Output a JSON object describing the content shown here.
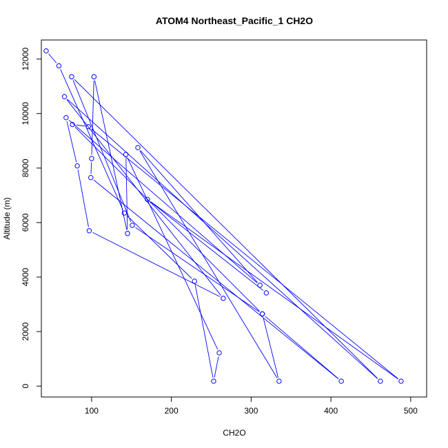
{
  "chart_data": {
    "type": "line",
    "mode": "both",
    "title": "ATOM4 Northeast_Pacific_1 CH2O",
    "xlabel": "CH2O",
    "ylabel": "Altitude (m)",
    "xlim": [
      37,
      520
    ],
    "ylim": [
      -400,
      12700
    ],
    "x_ticks": [
      100,
      200,
      300,
      400,
      500
    ],
    "y_ticks": [
      0,
      2000,
      4000,
      6000,
      8000,
      10000,
      12000
    ],
    "grid": false,
    "series": [
      {
        "color": "#0000ff",
        "marker": "open-circle",
        "points": [
          {
            "x": 43,
            "y": 12300
          },
          {
            "x": 59,
            "y": 11750
          },
          {
            "x": 141,
            "y": 6350
          },
          {
            "x": 229,
            "y": 3850
          },
          {
            "x": 253,
            "y": 180
          },
          {
            "x": 260,
            "y": 1220
          },
          {
            "x": 143,
            "y": 8500
          },
          {
            "x": 145,
            "y": 5600
          },
          {
            "x": 103,
            "y": 11350
          },
          {
            "x": 100,
            "y": 8350
          },
          {
            "x": 99,
            "y": 7650
          },
          {
            "x": 413,
            "y": 180
          },
          {
            "x": 314,
            "y": 2650
          },
          {
            "x": 151,
            "y": 5900
          },
          {
            "x": 75,
            "y": 11350
          },
          {
            "x": 462,
            "y": 180
          },
          {
            "x": 66,
            "y": 10620
          },
          {
            "x": 265,
            "y": 3220
          },
          {
            "x": 97,
            "y": 5700
          },
          {
            "x": 82,
            "y": 8080
          },
          {
            "x": 68,
            "y": 9850
          },
          {
            "x": 311,
            "y": 3700
          },
          {
            "x": 158,
            "y": 8750
          },
          {
            "x": 335,
            "y": 180
          },
          {
            "x": 314,
            "y": 2650
          },
          {
            "x": 76,
            "y": 9600
          },
          {
            "x": 96,
            "y": 9520
          },
          {
            "x": 488,
            "y": 180
          },
          {
            "x": 170,
            "y": 6850
          },
          {
            "x": 319,
            "y": 3420
          }
        ]
      }
    ]
  }
}
